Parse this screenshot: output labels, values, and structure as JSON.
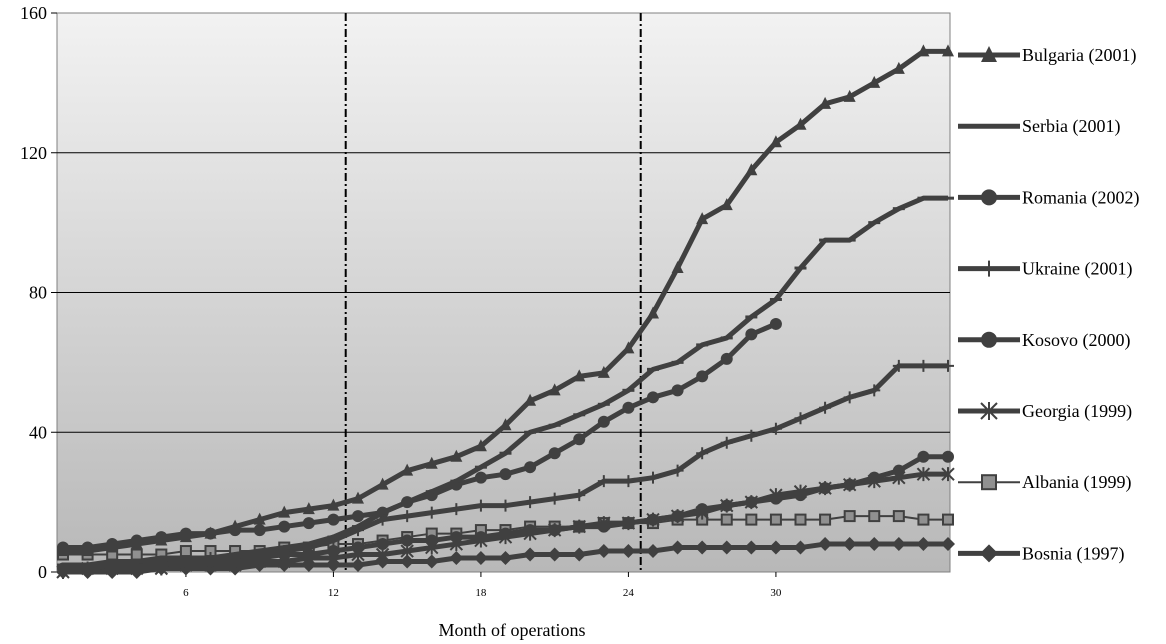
{
  "chart_data": {
    "type": "line",
    "title": "",
    "xlabel": "Month of operations",
    "ylabel": "",
    "xlim": [
      1,
      37
    ],
    "ylim": [
      0,
      160
    ],
    "y_ticks": [
      0,
      40,
      80,
      120,
      160
    ],
    "x_ticks": [
      6,
      12,
      18,
      24,
      30
    ],
    "vertical_dashed_lines": [
      12.5,
      24.5
    ],
    "grid": "horizontal",
    "background": "gray gradient",
    "legend_position": "right",
    "series": [
      {
        "name": "Bulgaria (2001)",
        "marker": "triangle",
        "x": [
          1,
          2,
          3,
          4,
          5,
          6,
          7,
          8,
          9,
          10,
          11,
          12,
          13,
          14,
          15,
          16,
          17,
          18,
          19,
          20,
          21,
          22,
          23,
          24,
          25,
          26,
          27,
          28,
          29,
          30,
          31,
          32,
          33,
          34,
          35,
          36,
          37
        ],
        "values": [
          6,
          6,
          7,
          8,
          9,
          10,
          11,
          13,
          15,
          17,
          18,
          19,
          21,
          25,
          29,
          31,
          33,
          36,
          42,
          49,
          52,
          56,
          57,
          64,
          74,
          87,
          101,
          105,
          115,
          123,
          128,
          134,
          136,
          140,
          144,
          149,
          149
        ]
      },
      {
        "name": "Serbia (2001)",
        "marker": "dash",
        "x": [
          1,
          2,
          3,
          4,
          5,
          6,
          7,
          8,
          9,
          10,
          11,
          12,
          13,
          14,
          15,
          16,
          17,
          18,
          19,
          20,
          21,
          22,
          23,
          24,
          25,
          26,
          27,
          28,
          29,
          30,
          31,
          32,
          33,
          34,
          35,
          36,
          37
        ],
        "values": [
          2,
          2,
          3,
          3,
          4,
          4,
          4,
          5,
          6,
          7,
          8,
          10,
          13,
          17,
          20,
          23,
          26,
          30,
          34,
          40,
          42,
          45,
          48,
          52,
          58,
          60,
          65,
          67,
          73,
          78,
          87,
          95,
          95,
          100,
          104,
          107,
          107
        ]
      },
      {
        "name": "Romania (2002)",
        "marker": "circle",
        "x": [
          1,
          2,
          3,
          4,
          5,
          6,
          7,
          8,
          9,
          10,
          11,
          12,
          13,
          14,
          15,
          16,
          17,
          18,
          19,
          20,
          21,
          22,
          23,
          24,
          25,
          26,
          27,
          28,
          29,
          30,
          31,
          32,
          33,
          34,
          35,
          36,
          37
        ],
        "values": [
          1,
          1,
          2,
          2,
          2,
          3,
          3,
          3,
          4,
          5,
          5,
          6,
          7,
          8,
          9,
          9,
          10,
          10,
          11,
          12,
          12,
          13,
          13,
          14,
          15,
          16,
          18,
          19,
          20,
          21,
          22,
          24,
          25,
          27,
          29,
          33,
          33
        ]
      },
      {
        "name": "Ukraine (2001)",
        "marker": "plus",
        "x": [
          1,
          2,
          3,
          4,
          5,
          6,
          7,
          8,
          9,
          10,
          11,
          12,
          13,
          14,
          15,
          16,
          17,
          18,
          19,
          20,
          21,
          22,
          23,
          24,
          25,
          26,
          27,
          28,
          29,
          30,
          31,
          32,
          33,
          34,
          35,
          36,
          37
        ],
        "values": [
          1,
          1,
          2,
          2,
          3,
          3,
          4,
          4,
          5,
          6,
          7,
          9,
          12,
          15,
          16,
          17,
          18,
          19,
          19,
          20,
          21,
          22,
          26,
          26,
          27,
          29,
          34,
          37,
          39,
          41,
          44,
          47,
          50,
          52,
          59,
          59,
          59
        ]
      },
      {
        "name": "Kosovo (2000)",
        "marker": "circle",
        "x": [
          1,
          2,
          3,
          4,
          5,
          6,
          7,
          8,
          9,
          10,
          11,
          12,
          13,
          14,
          15,
          16,
          17,
          18,
          19,
          20,
          21,
          22,
          23,
          24,
          25,
          26,
          27,
          28,
          29,
          30
        ],
        "values": [
          7,
          7,
          8,
          9,
          10,
          11,
          11,
          12,
          12,
          13,
          14,
          15,
          16,
          17,
          20,
          22,
          25,
          27,
          28,
          30,
          34,
          38,
          43,
          47,
          50,
          52,
          56,
          61,
          68,
          71
        ]
      },
      {
        "name": "Georgia (1999)",
        "marker": "asterisk",
        "x": [
          1,
          2,
          3,
          4,
          5,
          6,
          7,
          8,
          9,
          10,
          11,
          12,
          13,
          14,
          15,
          16,
          17,
          18,
          19,
          20,
          21,
          22,
          23,
          24,
          25,
          26,
          27,
          28,
          29,
          30,
          31,
          32,
          33,
          34,
          35,
          36,
          37
        ],
        "values": [
          0,
          1,
          1,
          1,
          1,
          2,
          2,
          2,
          3,
          3,
          4,
          4,
          5,
          5,
          6,
          7,
          8,
          9,
          10,
          11,
          12,
          13,
          14,
          14,
          15,
          16,
          17,
          19,
          20,
          22,
          23,
          24,
          25,
          26,
          27,
          28,
          28
        ]
      },
      {
        "name": "Albania (1999)",
        "marker": "square",
        "x": [
          1,
          2,
          3,
          4,
          5,
          6,
          7,
          8,
          9,
          10,
          11,
          12,
          13,
          14,
          15,
          16,
          17,
          18,
          19,
          20,
          21,
          22,
          23,
          24,
          25,
          26,
          27,
          28,
          29,
          30,
          31,
          32,
          33,
          34,
          35,
          36,
          37
        ],
        "values": [
          5,
          5,
          5,
          5,
          5,
          6,
          6,
          6,
          6,
          7,
          7,
          8,
          8,
          9,
          10,
          11,
          11,
          12,
          12,
          13,
          13,
          13,
          14,
          14,
          14,
          15,
          15,
          15,
          15,
          15,
          15,
          15,
          16,
          16,
          16,
          15,
          15
        ]
      },
      {
        "name": "Bosnia (1997)",
        "marker": "diamond",
        "x": [
          1,
          2,
          3,
          4,
          5,
          6,
          7,
          8,
          9,
          10,
          11,
          12,
          13,
          14,
          15,
          16,
          17,
          18,
          19,
          20,
          21,
          22,
          23,
          24,
          25,
          26,
          27,
          28,
          29,
          30,
          31,
          32,
          33,
          34,
          35,
          36,
          37
        ],
        "values": [
          0,
          0,
          0,
          0,
          1,
          1,
          1,
          1,
          2,
          2,
          2,
          2,
          2,
          3,
          3,
          3,
          4,
          4,
          4,
          5,
          5,
          5,
          6,
          6,
          6,
          7,
          7,
          7,
          7,
          7,
          7,
          8,
          8,
          8,
          8,
          8,
          8
        ]
      }
    ]
  }
}
